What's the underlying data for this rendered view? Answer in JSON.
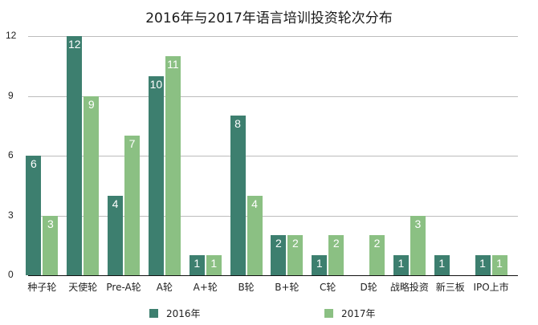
{
  "chart_data": {
    "type": "bar",
    "title": "2016年与2017年语言培训投资轮次分布",
    "xlabel": "",
    "ylabel": "",
    "ylim": [
      0,
      12
    ],
    "yticks": [
      0,
      3,
      6,
      9,
      12
    ],
    "grid": true,
    "legend_position": "bottom",
    "categories": [
      "种子轮",
      "天使轮",
      "Pre-A轮",
      "A轮",
      "A+轮",
      "B轮",
      "B+轮",
      "C轮",
      "D轮",
      "战略投资",
      "新三板",
      "IPO上市"
    ],
    "series": [
      {
        "name": "2016年",
        "color": "#3d7f6f",
        "values": [
          6,
          12,
          4,
          10,
          1,
          8,
          2,
          1,
          0,
          1,
          1,
          1
        ]
      },
      {
        "name": "2017年",
        "color": "#8bc083",
        "values": [
          3,
          9,
          7,
          11,
          1,
          4,
          2,
          2,
          2,
          3,
          0,
          1
        ]
      }
    ]
  }
}
